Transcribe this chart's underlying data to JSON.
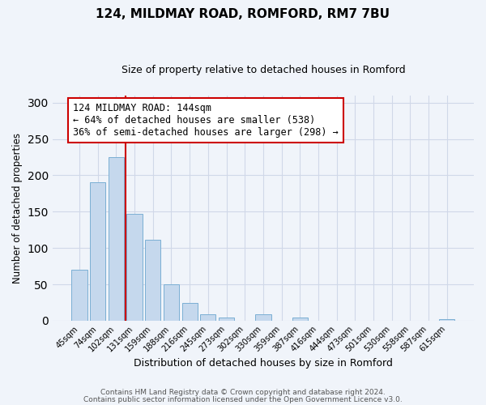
{
  "title": "124, MILDMAY ROAD, ROMFORD, RM7 7BU",
  "subtitle": "Size of property relative to detached houses in Romford",
  "xlabel": "Distribution of detached houses by size in Romford",
  "ylabel": "Number of detached properties",
  "bin_labels": [
    "45sqm",
    "74sqm",
    "102sqm",
    "131sqm",
    "159sqm",
    "188sqm",
    "216sqm",
    "245sqm",
    "273sqm",
    "302sqm",
    "330sqm",
    "359sqm",
    "387sqm",
    "416sqm",
    "444sqm",
    "473sqm",
    "501sqm",
    "530sqm",
    "558sqm",
    "587sqm",
    "615sqm"
  ],
  "bar_values": [
    70,
    190,
    225,
    147,
    111,
    50,
    25,
    9,
    4,
    0,
    9,
    0,
    4,
    0,
    0,
    0,
    0,
    0,
    0,
    0,
    2
  ],
  "bar_color": "#c5d8ed",
  "bar_edge_color": "#7bafd4",
  "vline_pos": 2.5,
  "vline_color": "#cc0000",
  "annotation_text": "124 MILDMAY ROAD: 144sqm\n← 64% of detached houses are smaller (538)\n36% of semi-detached houses are larger (298) →",
  "annotation_box_facecolor": "#ffffff",
  "annotation_box_edgecolor": "#cc0000",
  "ylim": [
    0,
    310
  ],
  "yticks": [
    0,
    50,
    100,
    150,
    200,
    250,
    300
  ],
  "grid_color": "#d0d8e8",
  "bg_color": "#f0f4fa",
  "footer_line1": "Contains HM Land Registry data © Crown copyright and database right 2024.",
  "footer_line2": "Contains public sector information licensed under the Open Government Licence v3.0."
}
